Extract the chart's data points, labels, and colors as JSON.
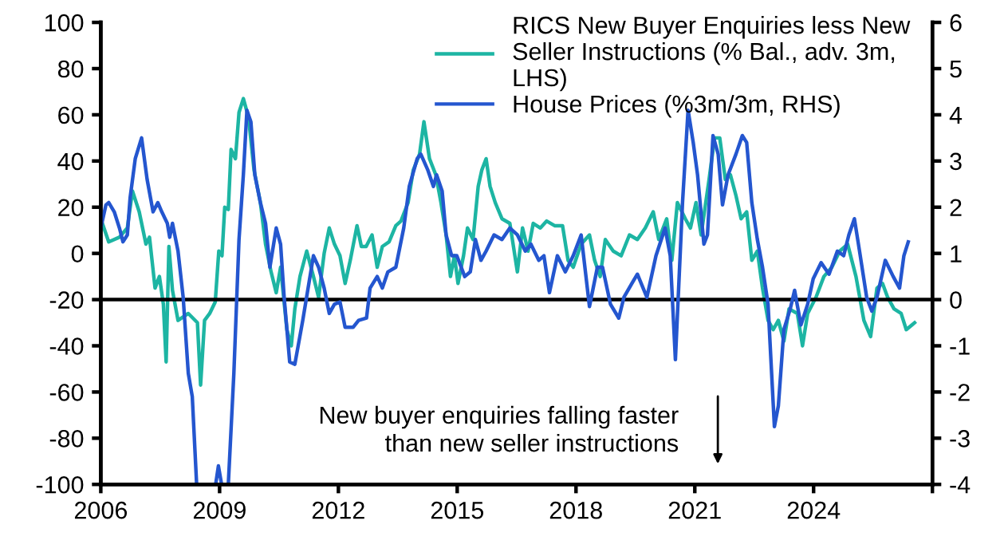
{
  "chart_data": {
    "type": "line",
    "xlim": [
      2006,
      2027
    ],
    "xticks": [
      2006,
      2009,
      2012,
      2015,
      2018,
      2021,
      2024,
      {
        "value": 2027,
        "label": null
      }
    ],
    "ylim": [
      -100,
      100
    ],
    "yticks": [
      -100,
      -80,
      -60,
      -40,
      -20,
      0,
      20,
      40,
      60,
      80,
      100
    ],
    "y2lim": [
      -4,
      6
    ],
    "y2ticks": [
      -4,
      -3,
      -2,
      -1,
      0,
      1,
      2,
      3,
      4,
      5,
      6
    ],
    "grid": false,
    "legend": "top right",
    "marker": "none",
    "line_style": "solid",
    "ref_lines": [
      {
        "axis": "y2",
        "value": 0,
        "label": null,
        "color": "#000000"
      }
    ],
    "annotations": [
      "New buyer enquiries falling faster\nthan new seller instructions"
    ],
    "series": [
      {
        "name": "RICS New Buyer Enquiries less New Seller Instructions (% Bal., adv. 3m, LHS)",
        "color": "#1db5a3",
        "axis": "y",
        "x": [
          2006.0,
          2006.2,
          2006.47,
          2006.67,
          2006.8,
          2006.97,
          2007.14,
          2007.23,
          2007.37,
          2007.48,
          2007.58,
          2007.65,
          2007.72,
          2007.81,
          2007.95,
          2008.21,
          2008.44,
          2008.52,
          2008.62,
          2008.75,
          2008.89,
          2008.98,
          2009.06,
          2009.13,
          2009.22,
          2009.29,
          2009.4,
          2009.49,
          2009.6,
          2009.73,
          2009.87,
          2010.03,
          2010.16,
          2010.3,
          2010.43,
          2010.54,
          2010.7,
          2010.81,
          2010.9,
          2011.03,
          2011.2,
          2011.37,
          2011.5,
          2011.64,
          2011.77,
          2011.9,
          2012.04,
          2012.17,
          2012.3,
          2012.47,
          2012.58,
          2012.7,
          2012.85,
          2012.98,
          2013.11,
          2013.28,
          2013.45,
          2013.58,
          2013.76,
          2013.89,
          2014.05,
          2014.16,
          2014.3,
          2014.46,
          2014.59,
          2014.72,
          2014.83,
          2014.93,
          2015.02,
          2015.16,
          2015.26,
          2015.4,
          2015.53,
          2015.62,
          2015.73,
          2015.83,
          2015.96,
          2016.13,
          2016.33,
          2016.52,
          2016.65,
          2016.79,
          2016.92,
          2017.1,
          2017.26,
          2017.46,
          2017.66,
          2017.8,
          2017.93,
          2018.13,
          2018.34,
          2018.47,
          2018.61,
          2018.74,
          2018.94,
          2019.14,
          2019.35,
          2019.55,
          2019.75,
          2019.95,
          2020.09,
          2020.29,
          2020.42,
          2020.56,
          2020.76,
          2020.89,
          2021.03,
          2021.16,
          2021.36,
          2021.5,
          2021.63,
          2021.77,
          2021.9,
          2022.04,
          2022.17,
          2022.31,
          2022.44,
          2022.58,
          2022.71,
          2022.85,
          2022.98,
          2023.11,
          2023.25,
          2023.38,
          2023.59,
          2023.72,
          2023.85,
          2024.06,
          2024.26,
          2024.46,
          2024.66,
          2024.86,
          2025.07,
          2025.27,
          2025.44,
          2025.6,
          2025.74,
          2025.87,
          2026.03,
          2026.21,
          2026.34,
          2026.48,
          2026.55
        ],
        "values": [
          15,
          5,
          7,
          11,
          27,
          18,
          4,
          7,
          -15,
          -10,
          -22,
          -47,
          3,
          -16,
          -29,
          -26,
          -30,
          -57,
          -29,
          -26,
          -21,
          1,
          -1,
          20,
          19,
          45,
          41,
          61,
          67,
          59,
          36,
          22,
          4,
          -8,
          -17,
          -6,
          -33,
          -40,
          -24,
          -10,
          1,
          -10,
          -19,
          0,
          11,
          4,
          -1,
          -13,
          -3,
          12,
          3,
          3,
          8,
          -6,
          3,
          5,
          12,
          14,
          22,
          36,
          43,
          57,
          41,
          34,
          22,
          8,
          -10,
          -1,
          -13,
          -1,
          11,
          6,
          29,
          36,
          41,
          29,
          22,
          15,
          13,
          -8,
          11,
          1,
          13,
          11,
          14,
          12,
          12,
          -3,
          -6,
          4,
          8,
          -3,
          -10,
          6,
          1,
          -1,
          8,
          6,
          11,
          18,
          6,
          15,
          -3,
          22,
          15,
          11,
          22,
          8,
          32,
          50,
          50,
          32,
          34,
          25,
          15,
          18,
          -3,
          1,
          -15,
          -29,
          -33,
          -29,
          -38,
          -24,
          -26,
          -40,
          -26,
          -19,
          -10,
          -6,
          1,
          4,
          -10,
          -29,
          -36,
          -15,
          -13,
          -19,
          -24,
          -26,
          -33,
          -31,
          -30
        ]
      },
      {
        "name": "House Prices (%3m/3m, RHS)",
        "color": "#2456cf",
        "axis": "y2",
        "x": [
          2006.0,
          2006.13,
          2006.2,
          2006.34,
          2006.47,
          2006.56,
          2006.67,
          2006.74,
          2006.87,
          2007.03,
          2007.17,
          2007.32,
          2007.44,
          2007.54,
          2007.68,
          2007.74,
          2007.81,
          2007.95,
          2008.08,
          2008.21,
          2008.31,
          2008.42,
          2008.6,
          2008.9,
          2008.97,
          2009.05,
          2009.22,
          2009.36,
          2009.49,
          2009.6,
          2009.69,
          2009.79,
          2009.89,
          2010.03,
          2010.16,
          2010.27,
          2010.43,
          2010.54,
          2010.63,
          2010.77,
          2010.9,
          2011.1,
          2011.37,
          2011.5,
          2011.64,
          2011.77,
          2011.9,
          2012.04,
          2012.17,
          2012.37,
          2012.51,
          2012.71,
          2012.8,
          2012.98,
          2013.11,
          2013.25,
          2013.45,
          2013.65,
          2013.79,
          2013.99,
          2014.08,
          2014.26,
          2014.4,
          2014.48,
          2014.62,
          2014.72,
          2014.86,
          2014.99,
          2015.19,
          2015.33,
          2015.46,
          2015.6,
          2015.73,
          2015.93,
          2016.13,
          2016.33,
          2016.52,
          2016.72,
          2016.86,
          2017.06,
          2017.19,
          2017.33,
          2017.53,
          2017.73,
          2017.93,
          2018.13,
          2018.34,
          2018.54,
          2018.67,
          2018.87,
          2019.08,
          2019.21,
          2019.41,
          2019.55,
          2019.79,
          2020.02,
          2020.25,
          2020.38,
          2020.51,
          2020.69,
          2020.83,
          2020.96,
          2021.07,
          2021.23,
          2021.32,
          2021.46,
          2021.59,
          2021.7,
          2021.84,
          2022.04,
          2022.2,
          2022.31,
          2022.44,
          2022.58,
          2022.71,
          2022.85,
          2022.94,
          2023.01,
          2023.11,
          2023.25,
          2023.41,
          2023.52,
          2023.68,
          2023.85,
          2023.99,
          2024.19,
          2024.39,
          2024.6,
          2024.76,
          2024.89,
          2025.03,
          2025.16,
          2025.34,
          2025.47,
          2025.6,
          2025.81,
          2026.01,
          2026.17,
          2026.28,
          2026.39
        ],
        "values": [
          1.55,
          2.05,
          2.1,
          1.9,
          1.55,
          1.25,
          1.4,
          2.2,
          3.05,
          3.5,
          2.6,
          1.9,
          2.1,
          1.9,
          1.65,
          1.35,
          1.65,
          1.05,
          0.05,
          -1.6,
          -2.1,
          -4,
          null,
          -4,
          -3.6,
          -4,
          -4,
          -1.6,
          1.3,
          2.7,
          4.1,
          3.85,
          2.7,
          2.1,
          1.65,
          0.7,
          1.55,
          1.2,
          0.05,
          -1.35,
          -1.4,
          -0.45,
          0.95,
          0.7,
          0.25,
          -0.3,
          -0.1,
          -0.05,
          -0.6,
          -0.6,
          -0.45,
          -0.4,
          0.25,
          0.5,
          0.25,
          0.6,
          0.7,
          1.55,
          2.45,
          3.05,
          3.15,
          2.8,
          2.45,
          2.7,
          2.35,
          1.4,
          0.95,
          0.95,
          0.5,
          0.6,
          1.3,
          0.85,
          1.05,
          1.4,
          1.3,
          1.55,
          1.4,
          1.05,
          1.2,
          0.85,
          0.95,
          0.15,
          0.95,
          0.6,
          0.95,
          1.4,
          -0.15,
          0.7,
          0.7,
          -0.1,
          -0.4,
          0.05,
          0.35,
          0.55,
          0.05,
          0.95,
          1.55,
          0.95,
          -1.3,
          2.1,
          4.1,
          3.4,
          2.7,
          1.2,
          1.4,
          3.55,
          3.15,
          2.05,
          2.7,
          3.15,
          3.55,
          3.4,
          2.1,
          1.3,
          0.7,
          -0.1,
          -1.6,
          -2.75,
          -2.3,
          -0.65,
          -0.2,
          0.2,
          -0.55,
          -0.1,
          0.45,
          0.8,
          0.55,
          1.05,
          0.95,
          1.4,
          1.75,
          1.05,
          0.05,
          -0.25,
          0.05,
          0.85,
          0.5,
          0.25,
          0.95,
          1.25
        ]
      }
    ]
  }
}
